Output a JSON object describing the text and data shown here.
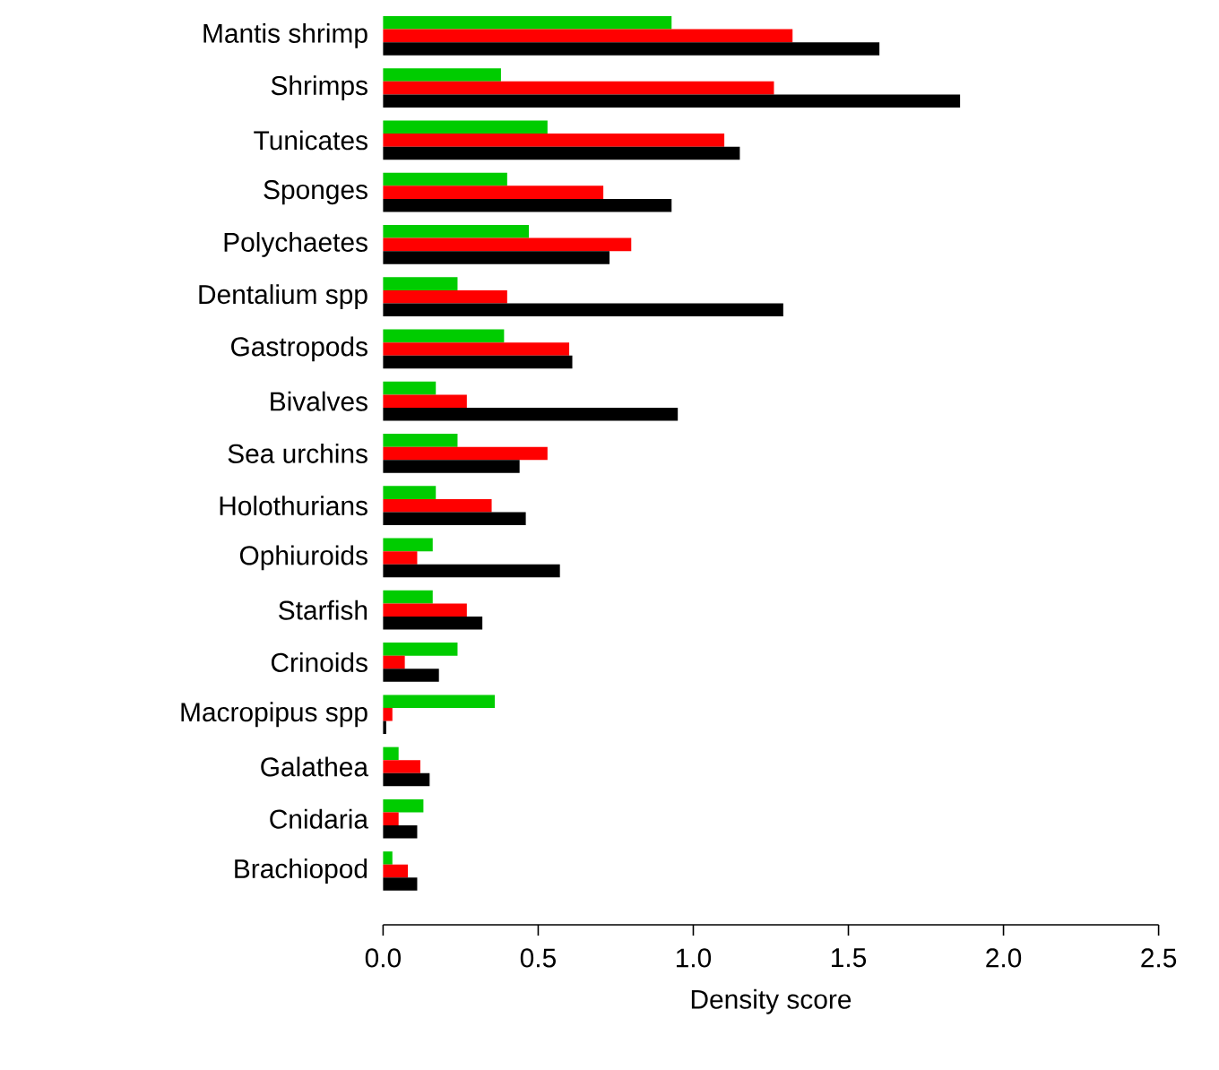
{
  "chart_data": {
    "type": "bar",
    "orientation": "horizontal",
    "xlabel": "Density score",
    "categories": [
      "Mantis shrimp",
      "Shrimps",
      "Tunicates",
      "Sponges",
      "Polychaetes",
      "Dentalium spp",
      "Gastropods",
      "Bivalves",
      "Sea urchins",
      "Holothurians",
      "Ophiuroids",
      "Starfish",
      "Crinoids",
      "Macropipus spp",
      "Galathea",
      "Cnidaria",
      "Brachiopod"
    ],
    "series": [
      {
        "color": "#00cc00",
        "values": [
          0.93,
          0.38,
          0.53,
          0.4,
          0.47,
          0.24,
          0.39,
          0.17,
          0.24,
          0.17,
          0.16,
          0.16,
          0.24,
          0.36,
          0.05,
          0.13,
          0.03
        ]
      },
      {
        "color": "#ff0000",
        "values": [
          1.32,
          1.26,
          1.1,
          0.71,
          0.8,
          0.4,
          0.6,
          0.27,
          0.53,
          0.35,
          0.11,
          0.27,
          0.07,
          0.03,
          0.12,
          0.05,
          0.08
        ]
      },
      {
        "color": "#000000",
        "values": [
          1.6,
          1.86,
          1.15,
          0.93,
          0.73,
          1.29,
          0.61,
          0.95,
          0.44,
          0.46,
          0.57,
          0.32,
          0.18,
          0.01,
          0.15,
          0.11,
          0.11
        ]
      }
    ],
    "xlim": [
      0,
      2.5
    ],
    "xticks": [
      {
        "value": 0,
        "label": "0.0"
      },
      {
        "value": 0.5,
        "label": "0.5"
      },
      {
        "value": 1,
        "label": "1.0"
      },
      {
        "value": 1.5,
        "label": "1.5"
      },
      {
        "value": 2,
        "label": "2.0"
      },
      {
        "value": 2.5,
        "label": "2.5"
      }
    ],
    "grid": false
  }
}
